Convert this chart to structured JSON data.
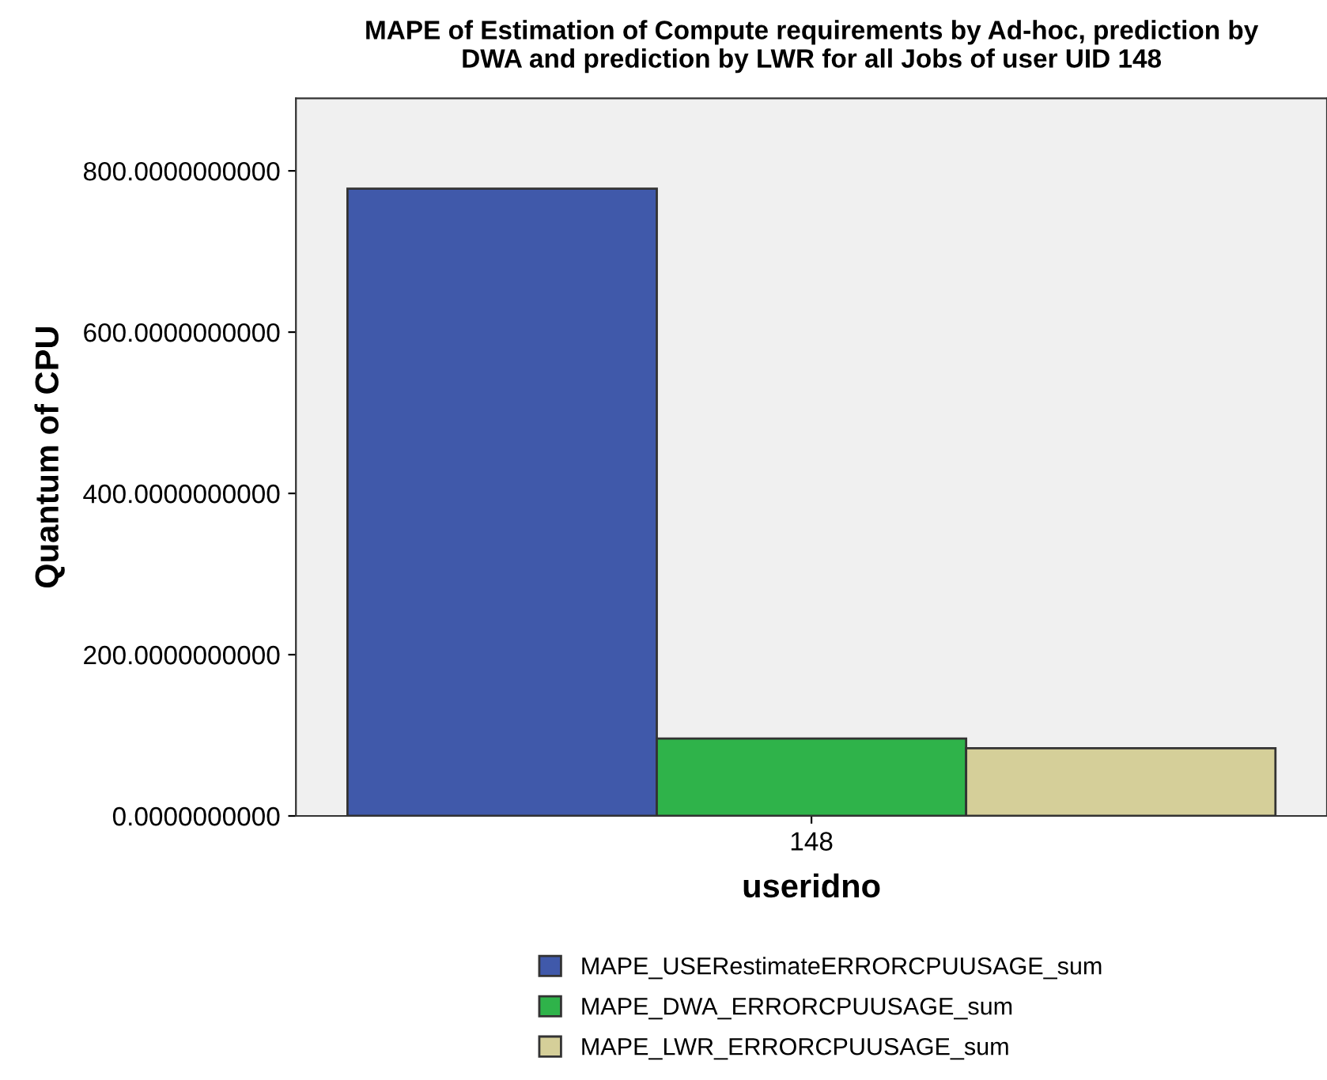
{
  "chart_data": {
    "type": "bar",
    "title": "MAPE of Estimation of Compute requirements by Ad-hoc, prediction by\nDWA and prediction by LWR for all Jobs of user UID 148",
    "xlabel": "useridno",
    "ylabel": "Quantum of CPU",
    "categories": [
      "148"
    ],
    "series": [
      {
        "name": "MAPE_USERestimateERRORCPUUSAGE_sum",
        "color": "#4059aa",
        "values": [
          778
        ]
      },
      {
        "name": "MAPE_DWA_ERRORCPUUSAGE_sum",
        "color": "#2fb34a",
        "values": [
          96
        ]
      },
      {
        "name": "MAPE_LWR_ERRORCPUUSAGE_sum",
        "color": "#d5cf99",
        "values": [
          84
        ]
      }
    ],
    "ylim": [
      0,
      890
    ],
    "yticks": [
      {
        "value": 0,
        "label": "0.0000000000"
      },
      {
        "value": 200,
        "label": "200.0000000000"
      },
      {
        "value": 400,
        "label": "400.0000000000"
      },
      {
        "value": 600,
        "label": "600.0000000000"
      },
      {
        "value": 800,
        "label": "800.0000000000"
      }
    ],
    "grid": false,
    "legend": "bottom"
  }
}
